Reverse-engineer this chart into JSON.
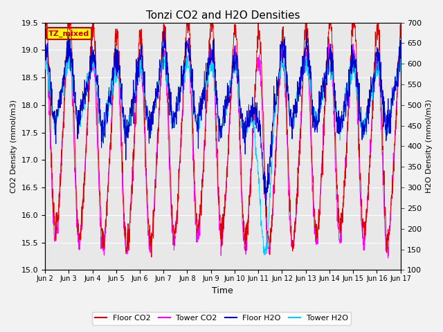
{
  "title": "Tonzi CO2 and H2O Densities",
  "xlabel": "Time",
  "ylabel_left": "CO2 Density (mmol/m3)",
  "ylabel_right": "H2O Density (mmol/m3)",
  "ylim_left": [
    15.0,
    19.5
  ],
  "ylim_right": [
    100,
    700
  ],
  "xtick_labels": [
    "Jun 2",
    "Jun 3",
    "Jun 4",
    "Jun 5",
    "Jun 6",
    "Jun 7",
    "Jun 8",
    "Jun 9",
    "Jun 10",
    "Jun 11",
    "Jun 12",
    "Jun 13",
    "Jun 14",
    "Jun 15",
    "Jun 16",
    "Jun 17"
  ],
  "annotation_text": "TZ_mixed",
  "annotation_color": "#cc0000",
  "annotation_bg": "#ffff00",
  "legend_labels": [
    "Floor CO2",
    "Tower CO2",
    "Floor H2O",
    "Tower H2O"
  ],
  "legend_colors": [
    "#dd0000",
    "#ff00ff",
    "#0000cc",
    "#00ccff"
  ],
  "floor_co2_color": "#dd0000",
  "tower_co2_color": "#ff00ff",
  "floor_h2o_color": "#0000cc",
  "tower_h2o_color": "#00ccff",
  "n_points": 1500,
  "n_days": 15,
  "background_color": "#e8e8e8",
  "grid_color": "#ffffff",
  "fig_facecolor": "#f2f2f2"
}
